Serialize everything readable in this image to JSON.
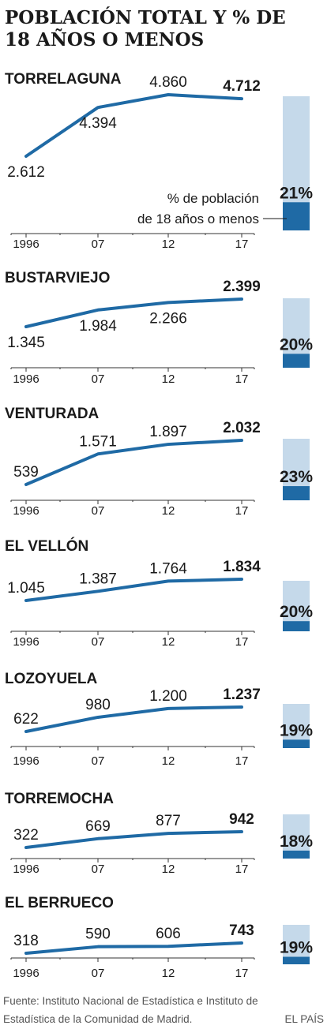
{
  "title_lines": [
    "POBLACIÓN TOTAL Y % DE",
    "18 AÑOS O MENOS"
  ],
  "legend_note_lines": [
    "% de población",
    "de 18 años o menos"
  ],
  "x_tick_labels": [
    "1996",
    "07",
    "12",
    "17"
  ],
  "source_lines": [
    "Fuente: Instituto Nacional de Estadística e Instituto de",
    "Estadística de la Comunidad de Madrid."
  ],
  "credit": "EL PAÍS",
  "colors": {
    "line": "#1f6aa5",
    "bar_fill": "#1f6aa5",
    "bar_background": "#c5d9ea",
    "text": "#1a1a1a",
    "axis": "#333333",
    "source_text": "#555555"
  },
  "chart_data": [
    {
      "type": "line",
      "title": "TORRELAGUNA",
      "x": [
        "1996",
        "07",
        "12",
        "17"
      ],
      "values": [
        2612,
        4394,
        4860,
        4712
      ],
      "labels": [
        "2.612",
        "4.394",
        "4.860",
        "4.712"
      ],
      "bar": {
        "value": 21,
        "label": "21%"
      }
    },
    {
      "type": "line",
      "title": "BUSTARVIEJO",
      "x": [
        "1996",
        "07",
        "12",
        "17"
      ],
      "values": [
        1345,
        1984,
        2266,
        2399
      ],
      "labels": [
        "1.345",
        "1.984",
        "2.266",
        "2.399"
      ],
      "bar": {
        "value": 20,
        "label": "20%"
      }
    },
    {
      "type": "line",
      "title": "VENTURADA",
      "x": [
        "1996",
        "07",
        "12",
        "17"
      ],
      "values": [
        539,
        1571,
        1897,
        2032
      ],
      "labels": [
        "539",
        "1.571",
        "1.897",
        "2.032"
      ],
      "bar": {
        "value": 23,
        "label": "23%"
      }
    },
    {
      "type": "line",
      "title": "EL VELLÓN",
      "x": [
        "1996",
        "07",
        "12",
        "17"
      ],
      "values": [
        1045,
        1387,
        1764,
        1834
      ],
      "labels": [
        "1.045",
        "1.387",
        "1.764",
        "1.834"
      ],
      "bar": {
        "value": 20,
        "label": "20%"
      }
    },
    {
      "type": "line",
      "title": "LOZOYUELA",
      "x": [
        "1996",
        "07",
        "12",
        "17"
      ],
      "values": [
        622,
        980,
        1200,
        1237
      ],
      "labels": [
        "622",
        "980",
        "1.200",
        "1.237"
      ],
      "bar": {
        "value": 19,
        "label": "19%"
      }
    },
    {
      "type": "line",
      "title": "TORREMOCHA",
      "x": [
        "1996",
        "07",
        "12",
        "17"
      ],
      "values": [
        322,
        669,
        877,
        942
      ],
      "labels": [
        "322",
        "669",
        "877",
        "942"
      ],
      "bar": {
        "value": 18,
        "label": "18%"
      }
    },
    {
      "type": "line",
      "title": "EL BERRUECO",
      "x": [
        "1996",
        "07",
        "12",
        "17"
      ],
      "values": [
        318,
        590,
        606,
        743
      ],
      "labels": [
        "318",
        "590",
        "606",
        "743"
      ],
      "bar": {
        "value": 19,
        "label": "19%"
      }
    }
  ]
}
